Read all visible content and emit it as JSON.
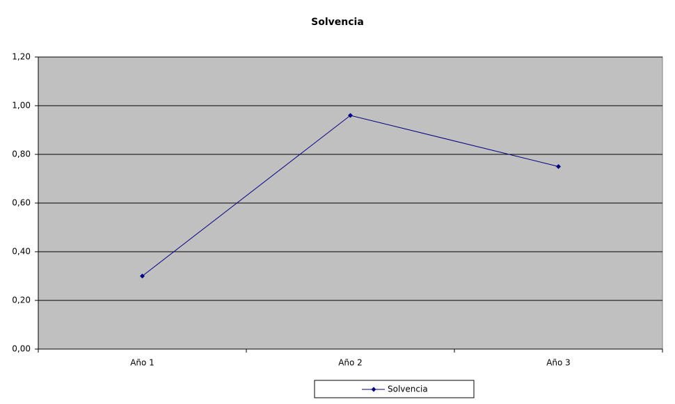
{
  "chart_data": {
    "type": "line",
    "title": "Solvencia",
    "categories": [
      "Año 1",
      "Año 2",
      "Año 3"
    ],
    "series": [
      {
        "name": "Solvencia",
        "color": "#000080",
        "values": [
          0.3,
          0.96,
          0.75
        ]
      }
    ],
    "ylim": [
      0,
      1.2
    ],
    "yticks": [
      {
        "value": 0,
        "label": "0,00"
      },
      {
        "value": 0.2,
        "label": "0,20"
      },
      {
        "value": 0.4,
        "label": "0,40"
      },
      {
        "value": 0.6,
        "label": "0,60"
      },
      {
        "value": 0.8,
        "label": "0,80"
      },
      {
        "value": 1.0,
        "label": "1,00"
      },
      {
        "value": 1.2,
        "label": "1,20"
      }
    ],
    "grid": true,
    "plot_background": "#c0c0c0",
    "legend": "bottom"
  }
}
